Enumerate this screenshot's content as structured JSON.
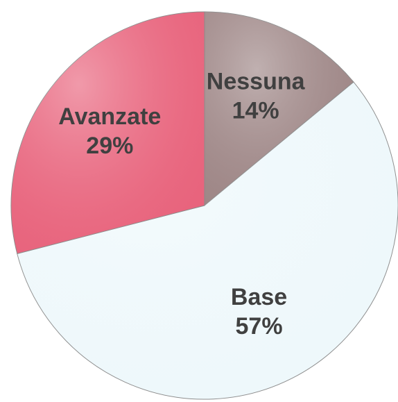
{
  "chart_data": {
    "type": "pie",
    "categories": [
      "Nessuna",
      "Base",
      "Avanzate"
    ],
    "values": [
      14,
      57,
      29
    ],
    "value_labels": [
      "14%",
      "57%",
      "29%"
    ],
    "colors": [
      "#9e8686",
      "#eef8fb",
      "#e8637c"
    ]
  }
}
